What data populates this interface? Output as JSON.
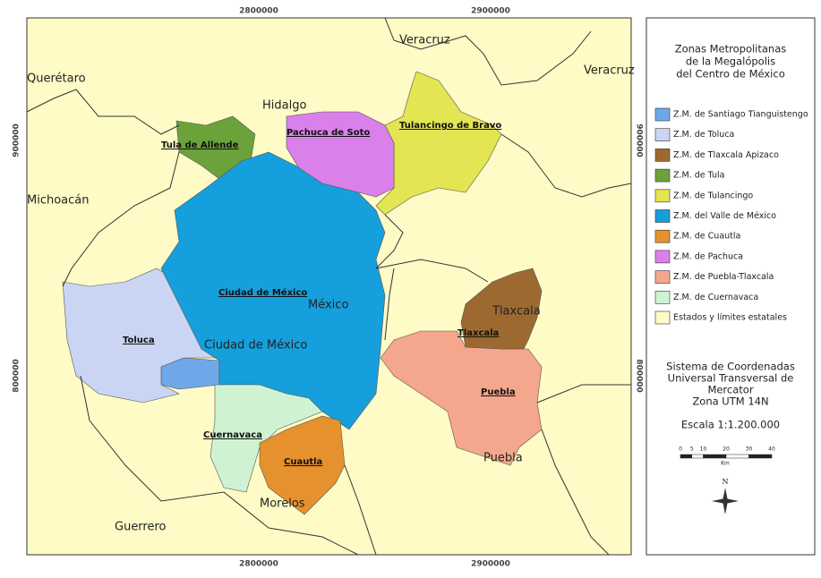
{
  "map": {
    "x_ticks": [
      2800000,
      2900000
    ],
    "y_ticks": [
      900000,
      800000
    ],
    "state_labels": [
      "Veracruz",
      "Querétaro",
      "Hidalgo",
      "Michoacán",
      "Veracruz",
      "Tlaxcala",
      "México",
      "Ciudad de México",
      "Puebla",
      "Morelos",
      "Guerrero"
    ],
    "city_labels": [
      "Tula de Allende",
      "Pachuca de Soto",
      "Tulancingo de Bravo",
      "Ciudad de México",
      "Toluca",
      "Tlaxcala",
      "Puebla",
      "Cuernavaca",
      "Cuautla"
    ]
  },
  "legend": {
    "title": [
      "Zonas Metropolitanas",
      "de la Megalópolis",
      "del Centro de México"
    ],
    "items": [
      {
        "label": "Z.M. de  Santiago Tianguistengo",
        "color": "#6fa8e8"
      },
      {
        "label": "Z.M. de Toluca",
        "color": "#c9d5f2"
      },
      {
        "label": "Z.M. de Tlaxcala Apizaco",
        "color": "#9c6a30"
      },
      {
        "label": "Z.M. de Tula",
        "color": "#6ba23a"
      },
      {
        "label": "Z.M. de Tulancingo",
        "color": "#e3e552"
      },
      {
        "label": "Z.M. del Valle de México",
        "color": "#159fdc"
      },
      {
        "label": "Z.M. de Cuautla",
        "color": "#e4912e"
      },
      {
        "label": "Z.M. de Pachuca",
        "color": "#da80ea"
      },
      {
        "label": "Z.M. de  Puebla-Tlaxcala",
        "color": "#f5a78d"
      },
      {
        "label": "Z.M. de Cuernavaca",
        "color": "#cff3d2"
      },
      {
        "label": "Estados y límites estatales",
        "color": "#fffbc6"
      }
    ],
    "projection": [
      "Sistema de Coordenadas",
      "Universal Transversal de",
      "Mercator",
      "Zona UTM 14N"
    ],
    "scale": "Escala 1:1.200.000",
    "scale_bar": [
      0,
      5,
      10,
      20,
      30,
      40
    ],
    "scale_unit": "Km",
    "north": "N"
  }
}
